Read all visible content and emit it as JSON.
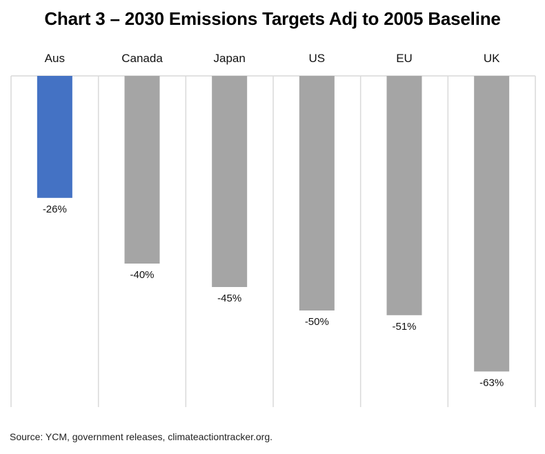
{
  "chart_data": {
    "type": "bar",
    "title": "Chart 3 – 2030 Emissions Targets Adj to 2005 Baseline",
    "categories": [
      "Aus",
      "Canada",
      "Japan",
      "US",
      "EU",
      "UK"
    ],
    "values": [
      -26,
      -40,
      -45,
      -50,
      -51,
      -63
    ],
    "data_labels": [
      "-26%",
      "-40%",
      "-45%",
      "-50%",
      "-51%",
      "-63%"
    ],
    "xlabel": "",
    "ylabel": "",
    "ylim": [
      -70,
      0
    ],
    "category_axis_position": "top",
    "grid": "vertical separators between categories",
    "legend": "none",
    "colors": {
      "highlight": "#4472C4",
      "default": "#A5A5A5",
      "gridline": "#D9D9D9"
    },
    "highlight_category": "Aus"
  },
  "source": "Source: YCM, government releases, climateactiontracker.org."
}
